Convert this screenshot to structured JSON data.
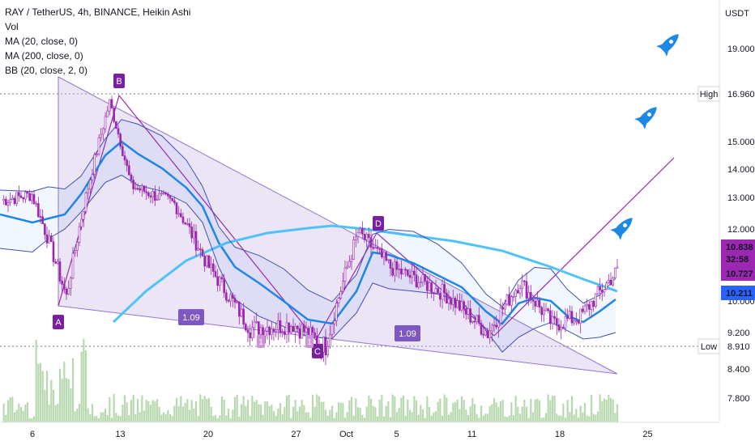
{
  "legend": {
    "symbol": "RAY / TetherUS, 4h, BINANCE, Heikin Ashi",
    "vol": "Vol",
    "ma20": "MA (20, close, 0)",
    "ma200": "MA (200, close, 0)",
    "bb": "BB (20, close, 2, 0)"
  },
  "chart_data": {
    "type": "candlestick",
    "ylabel": "USDT",
    "y_ticks": [
      "19.000",
      "16.960",
      "15.000",
      "14.000",
      "13.000",
      "12.000",
      "10.838",
      "32:58",
      "10.727",
      "10.211",
      "10.000",
      "9.200",
      "8.910",
      "8.400",
      "7.800"
    ],
    "x_ticks": [
      "6",
      "13",
      "20",
      "27",
      "Oct",
      "5",
      "11",
      "18",
      "25"
    ],
    "high": {
      "label": "High",
      "value": "16.960"
    },
    "low": {
      "label": "Low",
      "value": "8.910"
    },
    "price_tags": [
      {
        "value": "10.838",
        "color": "#9c27b0"
      },
      {
        "value": "32:58",
        "color": "#9c27b0"
      },
      {
        "value": "10.727",
        "color": "#9c27b0"
      },
      {
        "value": "10.211",
        "color": "#2962ff"
      }
    ],
    "pattern_points": [
      {
        "label": "A",
        "date": "Sep 8",
        "price": 9.95
      },
      {
        "label": "B",
        "date": "Sep 13",
        "price": 16.9
      },
      {
        "label": "C",
        "date": "Sep 30",
        "price": 8.9
      },
      {
        "label": "D",
        "date": "Oct 3",
        "price": 11.95
      }
    ],
    "ratio_labels": [
      "1.09",
      "1.09"
    ],
    "small_markers": [
      "1",
      "1"
    ],
    "colors": {
      "candles": "#9c27b0",
      "ma20": "#1e88e5",
      "ma200": "#4fc3f7",
      "bb": "#3f51b5",
      "pattern_fill": "#c5b4e3",
      "volume": "#b8d9b0"
    }
  }
}
